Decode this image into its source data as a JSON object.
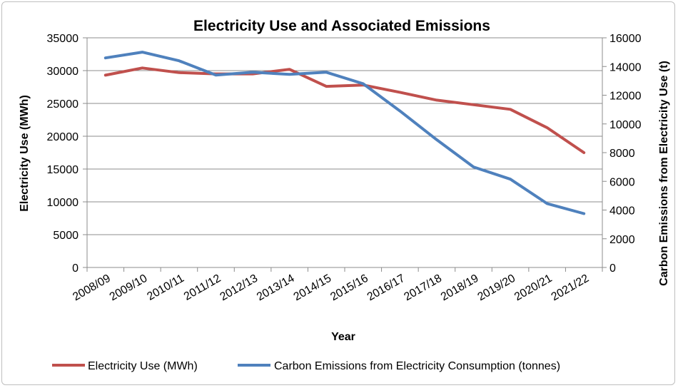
{
  "chart_data": {
    "type": "line",
    "title": "Electricity Use and Associated Emissions",
    "xlabel": "Year",
    "ylabel": "Electricity Use (MWh)",
    "y2label": "Carbon Emissions from Electricity Use (t)",
    "categories": [
      "2008/09",
      "2009/10",
      "2010/11",
      "2011/12",
      "2012/13",
      "2013/14",
      "2014/15",
      "2015/16",
      "2016/17",
      "2017/18",
      "2018/19",
      "2019/20",
      "2020/21",
      "2021/22"
    ],
    "ylim": [
      0,
      35000
    ],
    "y2lim": [
      0,
      16000
    ],
    "yticks": [
      "0",
      "5000",
      "10000",
      "15000",
      "20000",
      "25000",
      "30000",
      "35000"
    ],
    "y2ticks": [
      "0",
      "2000",
      "4000",
      "6000",
      "8000",
      "10000",
      "12000",
      "14000",
      "16000"
    ],
    "grid": true,
    "legend_position": "bottom",
    "series": [
      {
        "name": "Electricity Use (MWh)",
        "axis": "left",
        "color": "#c0504d",
        "values": [
          29300,
          30400,
          29700,
          29500,
          29500,
          30200,
          27600,
          27800,
          26700,
          25500,
          24800,
          24100,
          21300,
          17500
        ]
      },
      {
        "name": "Carbon Emissions from Electricity Consumption (tonnes)",
        "axis": "right",
        "color": "#4f81bd",
        "values": [
          14600,
          15000,
          14400,
          13400,
          13600,
          13450,
          13600,
          12800,
          10900,
          8900,
          7000,
          6150,
          4450,
          3750
        ]
      }
    ]
  }
}
